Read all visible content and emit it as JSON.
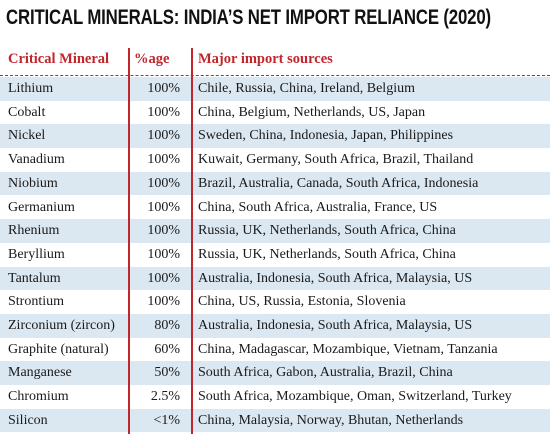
{
  "header": {
    "title": "CRITICAL MINERALS: INDIA’S NET IMPORT RELIANCE (2020)"
  },
  "table": {
    "columns": [
      "Critical Mineral",
      "%age",
      "Major import sources"
    ],
    "rows": [
      [
        "Lithium",
        "100%",
        "Chile, Russia, China, Ireland, Belgium"
      ],
      [
        "Cobalt",
        "100%",
        "China, Belgium, Netherlands, US, Japan"
      ],
      [
        "Nickel",
        "100%",
        "Sweden, China, Indonesia, Japan, Philippines"
      ],
      [
        "Vanadium",
        "100%",
        "Kuwait, Germany, South Africa, Brazil, Thailand"
      ],
      [
        "Niobium",
        "100%",
        "Brazil, Australia, Canada, South Africa, Indonesia"
      ],
      [
        "Germanium",
        "100%",
        "China, South Africa, Australia, France, US"
      ],
      [
        "Rhenium",
        "100%",
        "Russia, UK, Netherlands, South Africa, China"
      ],
      [
        "Beryllium",
        "100%",
        "Russia, UK, Netherlands, South Africa, China"
      ],
      [
        "Tantalum",
        "100%",
        "Australia, Indonesia, South Africa, Malaysia, US"
      ],
      [
        "Strontium",
        "100%",
        "China, US, Russia, Estonia, Slovenia"
      ],
      [
        "Zirconium (zircon)",
        "80%",
        "Australia, Indonesia, South Africa, Malaysia, US"
      ],
      [
        "Graphite (natural)",
        "60%",
        "China, Madagascar, Mozambique, Vietnam, Tanzania"
      ],
      [
        "Manganese",
        "50%",
        "South Africa, Gabon, Australia, Brazil, China"
      ],
      [
        "Chromium",
        "2.5%",
        "South Africa, Mozambique, Oman, Switzerland, Turkey"
      ],
      [
        "Silicon",
        "<1%",
        "China, Malaysia, Norway, Bhutan, Netherlands"
      ]
    ]
  }
}
